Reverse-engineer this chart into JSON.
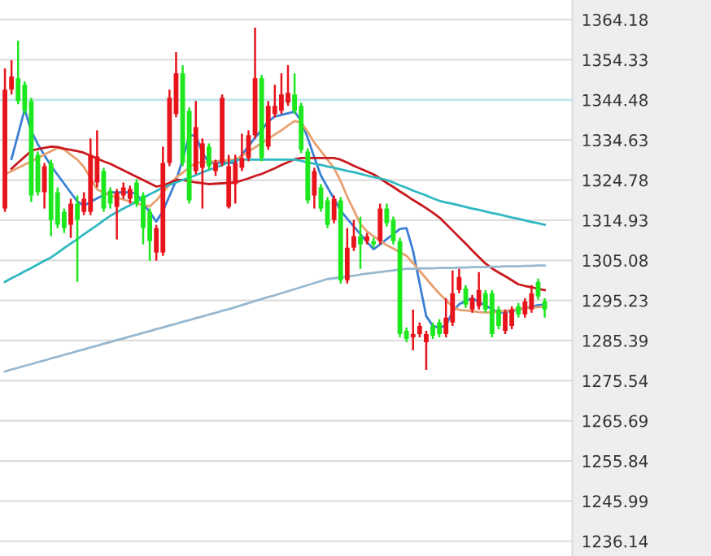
{
  "chart_data": {
    "type": "candlestick",
    "categories": [
      null,
      null,
      null,
      null,
      null,
      null,
      null,
      null,
      null,
      null,
      null,
      null,
      null,
      null,
      null,
      null,
      null,
      null,
      null,
      null,
      null,
      null,
      null,
      null,
      null,
      null,
      null,
      null,
      null,
      null,
      null,
      null,
      null,
      null,
      null,
      null,
      null,
      null,
      null,
      null,
      null,
      null,
      null,
      null,
      null,
      null,
      null,
      null,
      null,
      null,
      null,
      null,
      null,
      null,
      null,
      null,
      null,
      null,
      null,
      null,
      null,
      null,
      null,
      null,
      null,
      null,
      null,
      null,
      null,
      null,
      null,
      null,
      null,
      null,
      null,
      null,
      null,
      null,
      null,
      null,
      null,
      null,
      null
    ],
    "ohlc": [
      [
        1317.8,
        1352.2,
        1317,
        1347
      ],
      [
        1347,
        1354.2,
        1345.8,
        1350.2
      ],
      [
        1349.8,
        1359,
        1343.4,
        1344.2
      ],
      [
        1348.2,
        1349,
        1341,
        1341.8
      ],
      [
        1344.2,
        1345,
        1319.4,
        1321
      ],
      [
        1331,
        1331.8,
        1321,
        1321.8
      ],
      [
        1321.8,
        1329,
        1317.8,
        1328.2
      ],
      [
        1329,
        1329.8,
        1311,
        1315
      ],
      [
        1321.8,
        1323,
        1313,
        1313.8
      ],
      [
        1317,
        1317.8,
        1311.8,
        1313
      ],
      [
        1313.8,
        1320.2,
        1310.6,
        1319
      ],
      [
        1319,
        1321,
        1299.8,
        1315
      ],
      [
        1317,
        1321.8,
        1316.2,
        1320.2
      ],
      [
        1317,
        1335,
        1316.2,
        1331
      ],
      [
        1324.2,
        1337,
        1323,
        1330.6
      ],
      [
        1327,
        1327.8,
        1317,
        1317.8
      ],
      [
        1322.2,
        1323,
        1317.8,
        1319
      ],
      [
        1318.2,
        1322.6,
        1310.2,
        1321.8
      ],
      [
        1321,
        1324.2,
        1320.2,
        1323
      ],
      [
        1320.2,
        1323.4,
        1319,
        1322.6
      ],
      [
        1324.2,
        1325,
        1318.2,
        1319
      ],
      [
        1321,
        1321.8,
        1309,
        1313
      ],
      [
        1317,
        1317.8,
        1305,
        1309.8
      ],
      [
        1307,
        1313.8,
        1305,
        1313
      ],
      [
        1307,
        1333,
        1306.2,
        1329
      ],
      [
        1329,
        1347,
        1328.2,
        1345
      ],
      [
        1341,
        1356.2,
        1340.2,
        1351
      ],
      [
        1351,
        1353,
        1328.2,
        1329
      ],
      [
        1341.8,
        1342.6,
        1319,
        1319.8
      ],
      [
        1327,
        1344.2,
        1326.2,
        1337.8
      ],
      [
        1327.8,
        1335,
        1317.8,
        1333.8
      ],
      [
        1333,
        1333.8,
        1327.4,
        1328.2
      ],
      [
        1327,
        1329.8,
        1325.8,
        1329
      ],
      [
        1329,
        1345.8,
        1328.2,
        1345
      ],
      [
        1318.2,
        1331,
        1317.8,
        1328.2
      ],
      [
        1323.8,
        1331,
        1319,
        1329
      ],
      [
        1327.8,
        1336.2,
        1327,
        1330.2
      ],
      [
        1330.2,
        1337,
        1329.4,
        1335.8
      ],
      [
        1335.8,
        1362.2,
        1335,
        1349.8
      ],
      [
        1349.8,
        1350.6,
        1329.4,
        1330.2
      ],
      [
        1333,
        1344.2,
        1332.2,
        1343
      ],
      [
        1341,
        1348.2,
        1340.2,
        1343
      ],
      [
        1341.8,
        1351,
        1341,
        1345.8
      ],
      [
        1343.8,
        1353,
        1343,
        1346.2
      ],
      [
        1345.8,
        1351,
        1341,
        1341.8
      ],
      [
        1343,
        1343.8,
        1331.4,
        1332.2
      ],
      [
        1331.8,
        1332.6,
        1319,
        1319.8
      ],
      [
        1321,
        1327.8,
        1317.8,
        1327
      ],
      [
        1323,
        1323.8,
        1317,
        1317.8
      ],
      [
        1319.8,
        1320.6,
        1313,
        1313.8
      ],
      [
        1315,
        1321,
        1314.2,
        1320.2
      ],
      [
        1319.8,
        1320.6,
        1299.4,
        1300.2
      ],
      [
        1300.2,
        1313,
        1299.4,
        1308.2
      ],
      [
        1308.2,
        1315,
        1307.4,
        1311
      ],
      [
        1311,
        1315.8,
        1303,
        1309
      ],
      [
        1309.8,
        1311.8,
        1309,
        1311
      ],
      [
        1309.8,
        1310.6,
        1308.2,
        1309
      ],
      [
        1309.8,
        1319,
        1309,
        1317.8
      ],
      [
        1317.8,
        1319,
        1313.4,
        1314.2
      ],
      [
        1315,
        1315.8,
        1309,
        1309.8
      ],
      [
        1309.8,
        1310.6,
        1286.2,
        1287
      ],
      [
        1287.8,
        1288.6,
        1285,
        1285.8
      ],
      [
        1286.2,
        1293,
        1283,
        1287
      ],
      [
        1287,
        1289.8,
        1286.2,
        1289
      ],
      [
        1285,
        1287.8,
        1278.2,
        1287
      ],
      [
        1289,
        1289.8,
        1285.8,
        1286.6
      ],
      [
        1289.8,
        1290.6,
        1286.2,
        1287
      ],
      [
        1287,
        1295.8,
        1286.2,
        1291
      ],
      [
        1289.8,
        1302.6,
        1289,
        1297
      ],
      [
        1297.8,
        1303,
        1297,
        1301
      ],
      [
        1298.2,
        1299,
        1293.4,
        1294.2
      ],
      [
        1293,
        1296.6,
        1292.2,
        1295.8
      ],
      [
        1293.8,
        1302.2,
        1293,
        1297.8
      ],
      [
        1297,
        1297.8,
        1292.2,
        1293
      ],
      [
        1297,
        1297.8,
        1286.2,
        1287
      ],
      [
        1293,
        1293.8,
        1288.2,
        1289
      ],
      [
        1287.8,
        1293,
        1287,
        1292.2
      ],
      [
        1289,
        1293.8,
        1288.2,
        1293
      ],
      [
        1293.8,
        1294.6,
        1291,
        1291.8
      ],
      [
        1291.8,
        1295.8,
        1291,
        1295
      ],
      [
        1293,
        1299,
        1292.2,
        1297
      ],
      [
        1299.8,
        1300.6,
        1295.4,
        1296.2
      ],
      [
        1295,
        1295.8,
        1291,
        1293
      ]
    ],
    "colors": [
      "#e8141b",
      "#e8141b",
      "#1de81d",
      "#1de81d",
      "#1de81d",
      "#1de81d",
      "#e8141b",
      "#1de81d",
      "#1de81d",
      "#1de81d",
      "#e8141b",
      "#1de81d",
      "#e8141b",
      "#e8141b",
      "#e8141b",
      "#1de81d",
      "#1de81d",
      "#e8141b",
      "#e8141b",
      "#e8141b",
      "#1de81d",
      "#1de81d",
      "#1de81d",
      "#e8141b",
      "#e8141b",
      "#e8141b",
      "#e8141b",
      "#1de81d",
      "#1de81d",
      "#e8141b",
      "#e8141b",
      "#1de81d",
      "#e8141b",
      "#e8141b",
      "#e8141b",
      "#e8141b",
      "#e8141b",
      "#e8141b",
      "#e8141b",
      "#1de81d",
      "#e8141b",
      "#e8141b",
      "#e8141b",
      "#e8141b",
      "#1de81d",
      "#1de81d",
      "#1de81d",
      "#e8141b",
      "#1de81d",
      "#1de81d",
      "#e8141b",
      "#1de81d",
      "#e8141b",
      "#e8141b",
      "#1de81d",
      "#e8141b",
      "#1de81d",
      "#e8141b",
      "#1de81d",
      "#1de81d",
      "#1de81d",
      "#1de81d",
      "#e8141b",
      "#e8141b",
      "#e8141b",
      "#1de81d",
      "#1de81d",
      "#e8141b",
      "#e8141b",
      "#e8141b",
      "#1de81d",
      "#e8141b",
      "#e8141b",
      "#1de81d",
      "#1de81d",
      "#1de81d",
      "#e8141b",
      "#e8141b",
      "#1de81d",
      "#e8141b",
      "#e8141b",
      "#1de81d",
      "#1de81d"
    ],
    "series": [
      {
        "type": "line",
        "color": "#3a7fd5",
        "values": [
          null,
          1330,
          1336,
          1342.2,
          1336.8,
          1333.6,
          1330.9,
          1328.3,
          1326.1,
          1323.9,
          1321.7,
          1319.5,
          1318.5,
          1319.4,
          1320.3,
          1321.1,
          1321.8,
          1321.8,
          1321.8,
          1321.8,
          1321.4,
          1319.1,
          1316.9,
          1314.6,
          1317.2,
          1320.9,
          1324.7,
          1329.8,
          1335.8,
          1335.7,
          1331.5,
          1329,
          1329,
          1329,
          1329,
          1329,
          1331,
          1333.1,
          1335.2,
          1337.1,
          1339.2,
          1340.4,
          1340.8,
          1341.2,
          1341.6,
          1339.3,
          1335.1,
          1330.4,
          1325.9,
          1323,
          1320.2,
          1317.3,
          1315.3,
          1313.4,
          1311.5,
          1309.6,
          1307.8,
          1309,
          1310.3,
          1311.5,
          1312.8,
          1313,
          1307.4,
          1299.4,
          1291.4,
          1289,
          1288.5,
          1289.1,
          1292.5,
          1294.3,
          1295.1,
          1295.8,
          1294.8,
          1294,
          1293.1,
          1292.2,
          1292.4,
          1292.7,
          1292.9,
          1293.4,
          1293.7,
          1294.1,
          1294.2
        ]
      },
      {
        "type": "line",
        "color": "#e8a070",
        "values": [
          1326.2,
          1327,
          1327.8,
          1328.6,
          1329.4,
          1330.2,
          1331.1,
          1331.9,
          1332.7,
          1332.3,
          1331,
          1329.8,
          1328,
          1325.3,
          1322.5,
          1321.7,
          1321.1,
          1320.5,
          1320,
          1319.5,
          1319.1,
          1318.7,
          1318.3,
          1319.8,
          1321.7,
          1323.7,
          1325.4,
          1326.6,
          1327.9,
          1329,
          1329.1,
          1329.3,
          1329.4,
          1329.5,
          1329.7,
          1329.8,
          1330.7,
          1331.8,
          1332.8,
          1333.9,
          1334.9,
          1336,
          1337,
          1338.2,
          1339.3,
          1338.9,
          1336.6,
          1334,
          1331.9,
          1329.8,
          1327.7,
          1324.5,
          1320.7,
          1317.4,
          1314,
          1312.2,
          1311,
          1309.9,
          1308.8,
          1308,
          1307.1,
          1306.2,
          1304.4,
          1302.5,
          1300.6,
          1298.7,
          1296.9,
          1295.3,
          1293.7,
          1292.9,
          1292.8,
          1292.6,
          1292.4,
          1292.3,
          1292.3,
          1292.5,
          1292.7,
          1292.9,
          1293.1,
          1293.3,
          1293.5,
          1293.6,
          1293.8
        ]
      },
      {
        "type": "line",
        "color": "#c8191e",
        "values": [
          null,
          1327.6,
          1329.1,
          1330.5,
          1332,
          1332.4,
          1332.7,
          1333,
          1332.9,
          1332.5,
          1332.2,
          1331.9,
          1331.5,
          1330.8,
          1330.1,
          1329.4,
          1328.8,
          1328,
          1327.2,
          1326.4,
          1325.6,
          1324.8,
          1324,
          1323.2,
          1323.5,
          1324.1,
          1324.8,
          1324.8,
          1324.5,
          1324.2,
          1324,
          1323.8,
          1323.9,
          1324,
          1324.1,
          1324.2,
          1324.7,
          1325.2,
          1325.8,
          1326.3,
          1327,
          1327.7,
          1328.5,
          1329.2,
          1329.9,
          1330.2,
          1330.2,
          1330.2,
          1330.2,
          1330.2,
          1330.2,
          1329.8,
          1329.1,
          1328.3,
          1327.6,
          1326.9,
          1326.2,
          1325.2,
          1324.1,
          1323.1,
          1322,
          1321,
          1319.9,
          1318.9,
          1317.9,
          1316.8,
          1315.6,
          1314,
          1312.4,
          1310.8,
          1309.2,
          1307.5,
          1305.9,
          1304.3,
          1303.1,
          1302.1,
          1301.2,
          1300.2,
          1299.2,
          1298.8,
          1298.5,
          1298.1,
          1297.8
        ]
      },
      {
        "type": "line",
        "color": "#2fb8c0",
        "values": [
          1299.8,
          1300.7,
          1301.5,
          1302.4,
          1303.2,
          1304.1,
          1305,
          1305.8,
          1306.9,
          1308.1,
          1309.2,
          1310.3,
          1311.5,
          1312.6,
          1313.7,
          1314.9,
          1316,
          1316.9,
          1317.8,
          1318.6,
          1319.5,
          1320.4,
          1321.3,
          1322.1,
          1323,
          1323.6,
          1324.2,
          1324.8,
          1325.4,
          1326,
          1326.7,
          1327.3,
          1327.9,
          1328.5,
          1329.1,
          1329.8,
          1329.8,
          1329.8,
          1329.8,
          1329.8,
          1329.8,
          1329.8,
          1329.8,
          1329.8,
          1329.8,
          1329.5,
          1329.1,
          1328.8,
          1328.5,
          1328.1,
          1327.8,
          1327.4,
          1327,
          1326.7,
          1326.3,
          1325.9,
          1325.5,
          1325.2,
          1324.8,
          1324.2,
          1323.5,
          1322.9,
          1322.2,
          1321.6,
          1321,
          1320.3,
          1319.7,
          1319.3,
          1319,
          1318.6,
          1318.2,
          1317.8,
          1317.5,
          1317.1,
          1316.7,
          1316.4,
          1316,
          1315.6,
          1315.3,
          1314.9,
          1314.5,
          1314.2,
          1313.8
        ]
      },
      {
        "type": "line",
        "color": "#98b8d0",
        "values": [
          1277.8,
          1278.3,
          1278.7,
          1279.2,
          1279.6,
          1280.1,
          1280.5,
          1281,
          1281.4,
          1281.9,
          1282.3,
          1282.8,
          1283.2,
          1283.7,
          1284.1,
          1284.6,
          1285,
          1285.5,
          1285.9,
          1286.4,
          1286.8,
          1287.3,
          1287.7,
          1288.2,
          1288.6,
          1289.1,
          1289.5,
          1290,
          1290.4,
          1290.9,
          1291.3,
          1291.8,
          1292.2,
          1292.7,
          1293.1,
          1293.6,
          1294.1,
          1294.6,
          1295.1,
          1295.6,
          1296.1,
          1296.5,
          1297,
          1297.5,
          1298,
          1298.5,
          1299,
          1299.5,
          1300,
          1300.5,
          1300.7,
          1300.9,
          1301.1,
          1301.3,
          1301.6,
          1301.8,
          1302,
          1302.2,
          1302.4,
          1302.6,
          1302.8,
          1303,
          1303,
          1303.1,
          1303.1,
          1303.1,
          1303.2,
          1303.2,
          1303.2,
          1303.3,
          1303.3,
          1303.4,
          1303.4,
          1303.4,
          1303.5,
          1303.5,
          1303.6,
          1303.6,
          1303.6,
          1303.7,
          1303.7,
          1303.8,
          1303.8
        ]
      }
    ],
    "ylim": [
      1232.5,
      1369
    ],
    "yticks": [
      1236.14,
      1245.99,
      1255.84,
      1265.69,
      1275.54,
      1285.39,
      1295.23,
      1305.08,
      1314.93,
      1324.78,
      1334.63,
      1344.48,
      1354.33,
      1364.18
    ],
    "ref_lines": [
      {
        "axis": "y",
        "value": 1344.48,
        "color": "#bfe4ea"
      }
    ],
    "grid": "y",
    "tick_labels": "y"
  }
}
